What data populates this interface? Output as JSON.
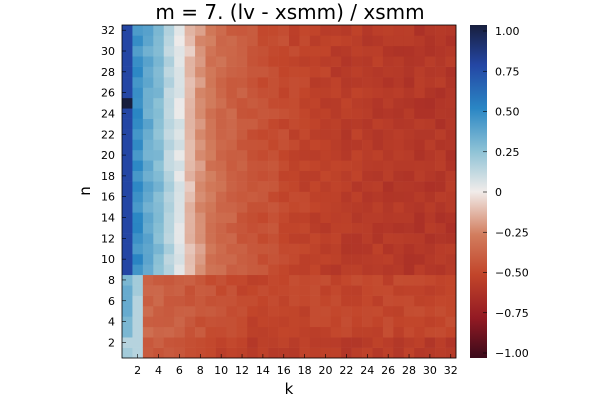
{
  "chart_data": {
    "type": "heatmap",
    "title": "m = 7. (lv - xsmm) / xsmm",
    "xlabel": "k",
    "ylabel": "n",
    "x_range": [
      1,
      32
    ],
    "y_range": [
      1,
      32
    ],
    "x_ticks": [
      "2",
      "4",
      "6",
      "8",
      "10",
      "12",
      "14",
      "16",
      "18",
      "20",
      "22",
      "24",
      "26",
      "28",
      "30",
      "32"
    ],
    "y_ticks": [
      "2",
      "4",
      "6",
      "8",
      "10",
      "12",
      "14",
      "16",
      "18",
      "20",
      "22",
      "24",
      "26",
      "28",
      "30",
      "32"
    ],
    "colorbar": {
      "range": [
        -1.0,
        1.0
      ],
      "ticks": [
        "1.00",
        "0.75",
        "0.50",
        "0.25",
        "0",
        "−0.25",
        "−0.50",
        "−0.75",
        "−1.00"
      ],
      "tick_values": [
        1.0,
        0.75,
        0.5,
        0.25,
        0,
        -0.25,
        -0.5,
        -0.75,
        -1.0
      ],
      "colormap": "balance"
    },
    "grid": false,
    "value_model": {
      "col1": [
        0.2,
        0.15,
        0.3,
        0.3,
        0.35,
        0.35,
        0.35,
        0.3,
        0.75,
        0.75,
        0.75,
        0.75,
        0.75,
        0.75,
        0.75,
        0.75,
        0.75,
        0.75,
        0.75,
        0.75,
        0.75,
        0.75,
        0.75,
        0.75,
        1.0,
        0.75,
        0.75,
        0.75,
        0.75,
        0.75,
        0.75,
        0.75
      ],
      "col2_low": [
        0.15,
        0.15,
        0.15,
        0.15,
        0.15,
        0.15,
        0.2,
        0.2
      ],
      "col2_high": 0.45,
      "small_n_rows": 8,
      "small_n_base": -0.35,
      "small_n_decay": -0.15,
      "large_n_profile": [
        0.75,
        0.45,
        0.35,
        0.28,
        0.15,
        0.05,
        -0.1,
        -0.2,
        -0.28,
        -0.33,
        -0.37,
        -0.4,
        -0.43,
        -0.45,
        -0.46,
        -0.48,
        -0.5,
        -0.51,
        -0.52,
        -0.53,
        -0.54,
        -0.55,
        -0.55,
        -0.56,
        -0.56,
        -0.57,
        -0.57,
        -0.58,
        -0.58,
        -0.58,
        -0.58,
        -0.58
      ]
    }
  }
}
